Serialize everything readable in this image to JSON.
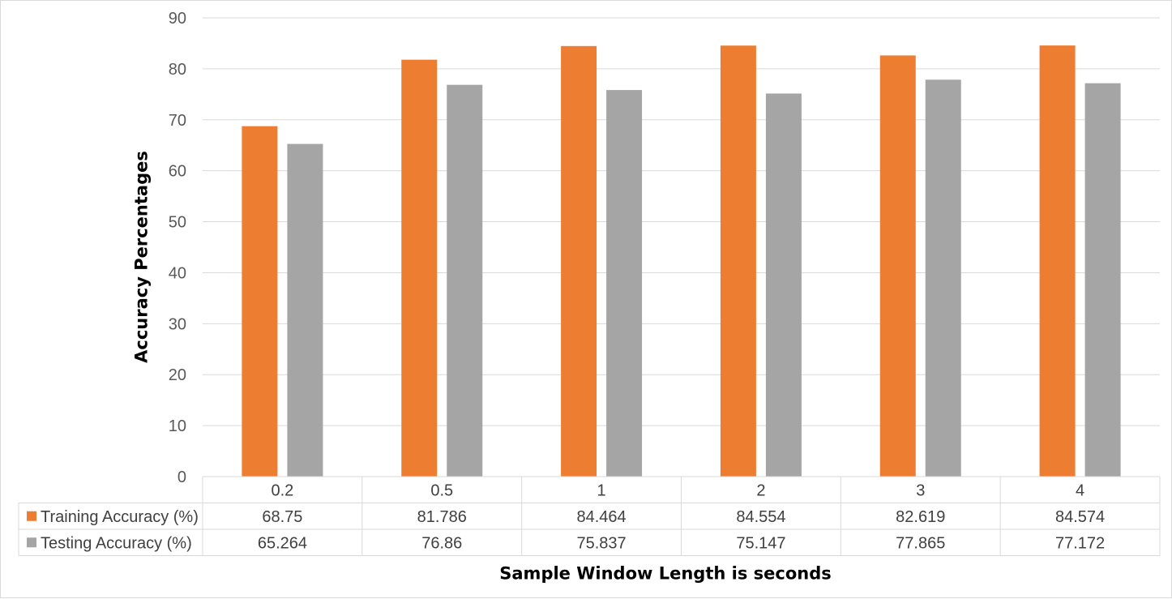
{
  "chart_data": {
    "type": "bar",
    "categories": [
      "0.2",
      "0.5",
      "1",
      "2",
      "3",
      "4"
    ],
    "series": [
      {
        "name": "Training Accuracy (%)",
        "color": "#ed7d31",
        "values": [
          68.75,
          81.786,
          84.464,
          84.554,
          82.619,
          84.574
        ]
      },
      {
        "name": "Testing Accuracy (%)",
        "color": "#a5a5a5",
        "values": [
          65.264,
          76.86,
          75.837,
          75.147,
          77.865,
          77.172
        ]
      }
    ],
    "xlabel": "Sample Window Length is seconds",
    "ylabel": "Accuracy Percentages",
    "ylim": [
      0,
      90
    ],
    "yticks": [
      0,
      10,
      20,
      30,
      40,
      50,
      60,
      70,
      80,
      90
    ],
    "grid": true,
    "legend": "data table below plot"
  }
}
